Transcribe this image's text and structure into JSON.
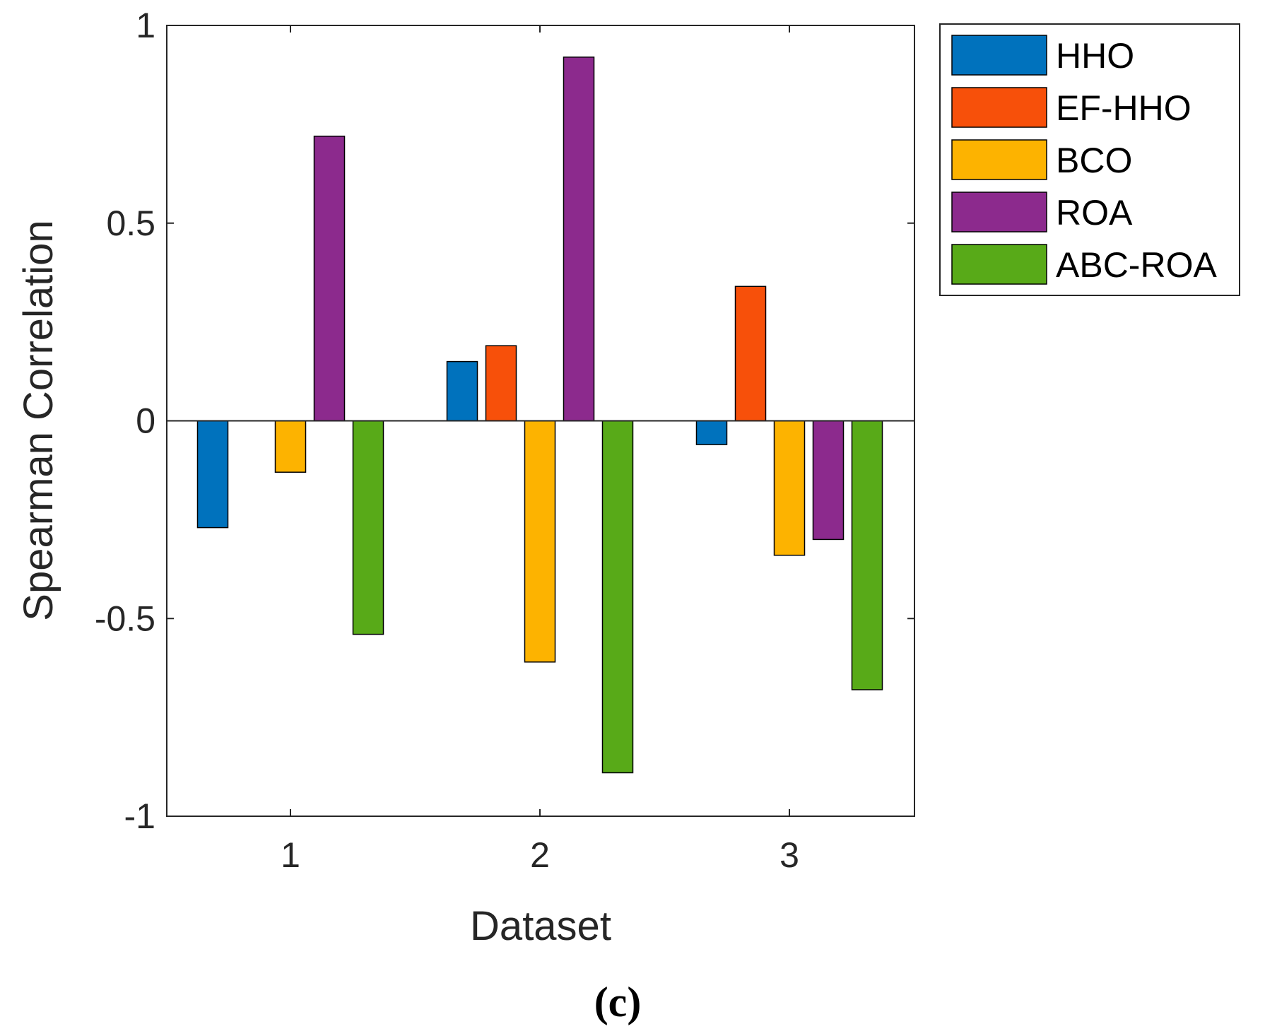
{
  "chart_data": {
    "type": "bar",
    "title": "",
    "xlabel": "Dataset",
    "ylabel": "Spearman Correlation",
    "categories": [
      "1",
      "2",
      "3"
    ],
    "ylim": [
      -1,
      1
    ],
    "yticks": [
      -1,
      -0.5,
      0,
      0.5,
      1
    ],
    "ytick_labels": [
      "-1",
      "-0.5",
      "0",
      "0.5",
      "1"
    ],
    "legend_position": "outside-top-right",
    "grid": false,
    "series": [
      {
        "name": "HHO",
        "color": "#0072BD",
        "values": [
          -0.27,
          0.15,
          -0.06
        ]
      },
      {
        "name": "EF-HHO",
        "color": "#F7500A",
        "values": [
          0.0,
          0.19,
          0.34
        ]
      },
      {
        "name": "BCO",
        "color": "#FDB300",
        "values": [
          -0.13,
          -0.61,
          -0.34
        ]
      },
      {
        "name": "ROA",
        "color": "#8C2A8D",
        "values": [
          0.72,
          0.92,
          -0.3
        ]
      },
      {
        "name": "ABC-ROA",
        "color": "#58AA18",
        "values": [
          -0.54,
          -0.89,
          -0.68
        ]
      }
    ]
  },
  "caption": "(c)"
}
